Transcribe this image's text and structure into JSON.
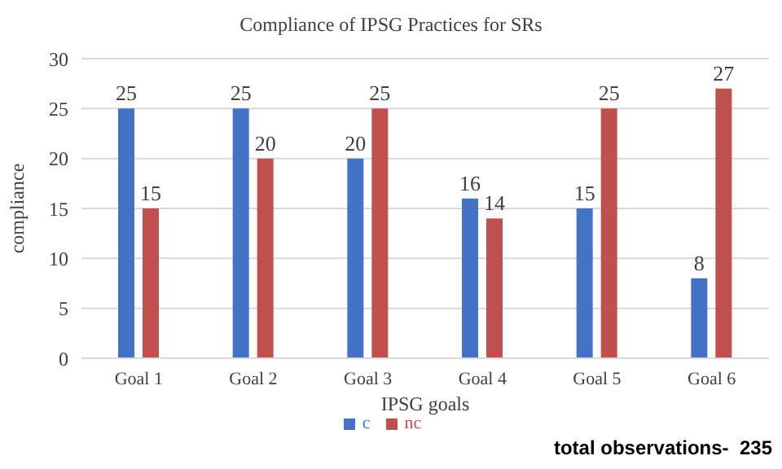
{
  "chart_data": {
    "type": "bar",
    "title": "Compliance of IPSG Practices for SRs",
    "xlabel": "IPSG goals",
    "ylabel": "compliance",
    "categories": [
      "Goal 1",
      "Goal 2",
      "Goal 3",
      "Goal 4",
      "Goal 5",
      "Goal 6"
    ],
    "series": [
      {
        "name": "c",
        "color": "#4472c4",
        "values": [
          25,
          25,
          20,
          16,
          15,
          8
        ]
      },
      {
        "name": "nc",
        "color": "#c0504d",
        "values": [
          15,
          20,
          25,
          14,
          25,
          27
        ]
      }
    ],
    "ylim": [
      0,
      30
    ],
    "yticks": [
      0,
      5,
      10,
      15,
      20,
      25,
      30
    ],
    "grid": "y",
    "legend": "bottom",
    "data_labels": true,
    "annotations": [
      "total observations-  235"
    ]
  }
}
